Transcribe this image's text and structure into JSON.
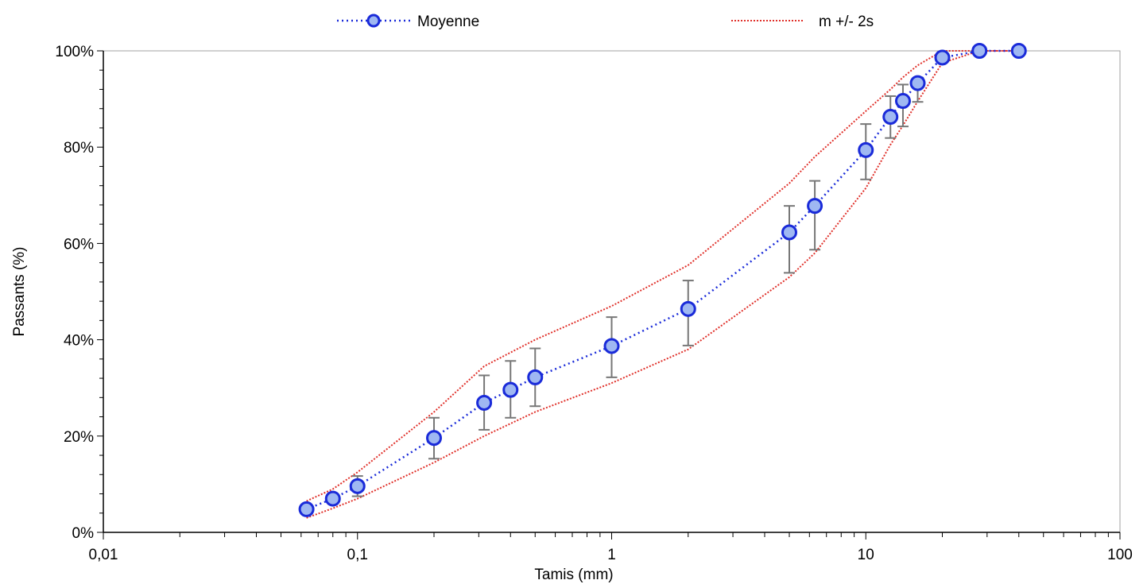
{
  "chart_data": {
    "type": "scatter",
    "xscale": "log",
    "xlim": [
      0.01,
      100
    ],
    "ylim": [
      0,
      100
    ],
    "grid": false,
    "legend_position": "top",
    "xlabel": "Tamis (mm)",
    "ylabel": "Passants (%)",
    "x_tick_labels": [
      "0,01",
      "0,1",
      "1",
      "10",
      "100"
    ],
    "y_tick_labels": [
      "0%",
      "20%",
      "40%",
      "60%",
      "80%",
      "100%"
    ],
    "series": [
      {
        "name": "Moyenne",
        "color": "#1a2bd9",
        "marker_fill": "#9fb8f2",
        "x": [
          0.063,
          0.08,
          0.1,
          0.2,
          0.315,
          0.4,
          0.5,
          1,
          2,
          5,
          6.3,
          10,
          12.5,
          14,
          16,
          20,
          28,
          40
        ],
        "y": [
          4.8,
          7.0,
          9.6,
          19.6,
          26.9,
          29.6,
          32.2,
          38.7,
          46.4,
          62.3,
          67.8,
          79.4,
          86.3,
          89.6,
          93.3,
          98.6,
          100,
          100
        ],
        "error_low": [
          null,
          null,
          7.5,
          15.3,
          21.3,
          23.8,
          26.2,
          32.2,
          38.8,
          53.9,
          58.7,
          73.3,
          81.9,
          84.3,
          89.4,
          null,
          null,
          null
        ],
        "error_high": [
          null,
          null,
          11.7,
          23.8,
          32.6,
          35.6,
          38.2,
          44.7,
          52.3,
          67.8,
          73.0,
          84.8,
          90.6,
          93.0,
          null,
          null,
          null,
          null
        ]
      },
      {
        "name": "m +/- 2s",
        "color": "#e0302a",
        "x": [
          0.063,
          0.08,
          0.1,
          0.2,
          0.315,
          0.5,
          1,
          2,
          5,
          6.3,
          10,
          12.5,
          14,
          16,
          20,
          28,
          40
        ],
        "upper": [
          6.5,
          9.0,
          12.5,
          25.0,
          34.5,
          40.0,
          47.0,
          55.5,
          72.5,
          78.0,
          87.5,
          92.0,
          94.5,
          97.0,
          100,
          100,
          100
        ],
        "lower": [
          3.0,
          5.0,
          7.0,
          14.5,
          20.0,
          25.0,
          31.0,
          38.0,
          53.0,
          58.0,
          71.5,
          80.5,
          84.5,
          89.5,
          97.5,
          100,
          100
        ]
      }
    ]
  }
}
